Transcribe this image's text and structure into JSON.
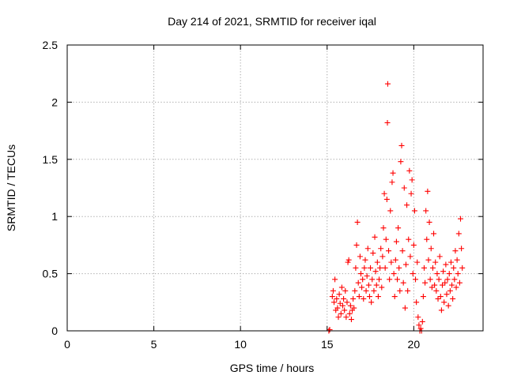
{
  "chart_data": {
    "type": "scatter",
    "title": "Day 214 of 2021, SRMTID for receiver iqal",
    "xlabel": "GPS time / hours",
    "ylabel": "SRMTID / TECUs",
    "xlim": [
      0,
      24
    ],
    "ylim": [
      0,
      2.5
    ],
    "xticks": [
      0,
      5,
      10,
      15,
      20
    ],
    "yticks": [
      0,
      0.5,
      1,
      1.5,
      2,
      2.5
    ],
    "xtick_labels": [
      "0",
      "5",
      "10",
      "15",
      "20"
    ],
    "ytick_labels": [
      "0",
      "0.5",
      "1",
      "1.5",
      "2",
      "2.5"
    ],
    "grid": true,
    "marker": "+",
    "color": "#ff0000",
    "series": [
      {
        "name": "SRMTID",
        "points": [
          [
            15.1,
            0.0
          ],
          [
            15.15,
            0.01
          ],
          [
            15.3,
            0.3
          ],
          [
            15.35,
            0.35
          ],
          [
            15.4,
            0.25
          ],
          [
            15.45,
            0.45
          ],
          [
            15.5,
            0.18
          ],
          [
            15.55,
            0.28
          ],
          [
            15.6,
            0.2
          ],
          [
            15.65,
            0.12
          ],
          [
            15.7,
            0.32
          ],
          [
            15.75,
            0.24
          ],
          [
            15.8,
            0.15
          ],
          [
            15.85,
            0.38
          ],
          [
            15.9,
            0.22
          ],
          [
            15.95,
            0.28
          ],
          [
            16.0,
            0.18
          ],
          [
            16.05,
            0.35
          ],
          [
            16.1,
            0.12
          ],
          [
            16.15,
            0.25
          ],
          [
            16.2,
            0.6
          ],
          [
            16.25,
            0.62
          ],
          [
            16.3,
            0.15
          ],
          [
            16.35,
            0.22
          ],
          [
            16.4,
            0.1
          ],
          [
            16.45,
            0.18
          ],
          [
            16.5,
            0.28
          ],
          [
            16.55,
            0.2
          ],
          [
            16.6,
            0.35
          ],
          [
            16.65,
            0.55
          ],
          [
            16.7,
            0.75
          ],
          [
            16.75,
            0.95
          ],
          [
            16.8,
            0.42
          ],
          [
            16.85,
            0.3
          ],
          [
            16.9,
            0.65
          ],
          [
            16.95,
            0.5
          ],
          [
            17.0,
            0.38
          ],
          [
            17.05,
            0.45
          ],
          [
            17.1,
            0.28
          ],
          [
            17.15,
            0.55
          ],
          [
            17.2,
            0.62
          ],
          [
            17.25,
            0.35
          ],
          [
            17.3,
            0.48
          ],
          [
            17.35,
            0.72
          ],
          [
            17.4,
            0.4
          ],
          [
            17.45,
            0.3
          ],
          [
            17.5,
            0.55
          ],
          [
            17.55,
            0.25
          ],
          [
            17.6,
            0.45
          ],
          [
            17.65,
            0.68
          ],
          [
            17.7,
            0.35
          ],
          [
            17.75,
            0.82
          ],
          [
            17.8,
            0.52
          ],
          [
            17.85,
            0.4
          ],
          [
            17.9,
            0.6
          ],
          [
            17.95,
            0.3
          ],
          [
            18.0,
            0.45
          ],
          [
            18.05,
            0.55
          ],
          [
            18.1,
            0.72
          ],
          [
            18.15,
            0.38
          ],
          [
            18.2,
            0.65
          ],
          [
            18.25,
            0.9
          ],
          [
            18.3,
            1.2
          ],
          [
            18.35,
            0.55
          ],
          [
            18.4,
            0.8
          ],
          [
            18.45,
            1.15
          ],
          [
            18.5,
            2.16
          ],
          [
            18.48,
            1.82
          ],
          [
            18.55,
            0.7
          ],
          [
            18.6,
            0.45
          ],
          [
            18.65,
            1.05
          ],
          [
            18.7,
            0.6
          ],
          [
            18.75,
            1.3
          ],
          [
            18.8,
            1.38
          ],
          [
            18.85,
            0.5
          ],
          [
            18.9,
            0.3
          ],
          [
            18.95,
            0.62
          ],
          [
            19.0,
            0.78
          ],
          [
            19.05,
            0.45
          ],
          [
            19.1,
            0.9
          ],
          [
            19.15,
            0.55
          ],
          [
            19.2,
            0.35
          ],
          [
            19.25,
            1.48
          ],
          [
            19.3,
            1.62
          ],
          [
            19.35,
            0.7
          ],
          [
            19.4,
            0.42
          ],
          [
            19.45,
            1.25
          ],
          [
            19.5,
            0.2
          ],
          [
            19.55,
            0.58
          ],
          [
            19.6,
            1.1
          ],
          [
            19.65,
            0.35
          ],
          [
            19.7,
            0.8
          ],
          [
            19.75,
            1.4
          ],
          [
            19.8,
            0.65
          ],
          [
            19.85,
            1.2
          ],
          [
            19.9,
            1.32
          ],
          [
            19.95,
            0.5
          ],
          [
            20.0,
            0.75
          ],
          [
            20.05,
            1.05
          ],
          [
            20.1,
            0.45
          ],
          [
            20.15,
            0.25
          ],
          [
            20.2,
            0.6
          ],
          [
            20.25,
            0.12
          ],
          [
            20.3,
            0.05
          ],
          [
            20.35,
            0.0
          ],
          [
            20.4,
            0.02
          ],
          [
            20.45,
            0.0
          ],
          [
            20.5,
            0.08
          ],
          [
            20.55,
            0.3
          ],
          [
            20.6,
            0.55
          ],
          [
            20.65,
            0.42
          ],
          [
            20.7,
            1.05
          ],
          [
            20.75,
            0.8
          ],
          [
            20.8,
            1.22
          ],
          [
            20.85,
            0.62
          ],
          [
            20.9,
            0.95
          ],
          [
            20.95,
            0.45
          ],
          [
            21.0,
            0.72
          ],
          [
            21.05,
            0.38
          ],
          [
            21.1,
            0.55
          ],
          [
            21.15,
            0.85
          ],
          [
            21.2,
            0.4
          ],
          [
            21.25,
            0.6
          ],
          [
            21.3,
            0.35
          ],
          [
            21.35,
            0.5
          ],
          [
            21.4,
            0.28
          ],
          [
            21.45,
            0.45
          ],
          [
            21.5,
            0.65
          ],
          [
            21.55,
            0.3
          ],
          [
            21.6,
            0.18
          ],
          [
            21.65,
            0.4
          ],
          [
            21.7,
            0.52
          ],
          [
            21.75,
            0.25
          ],
          [
            21.8,
            0.42
          ],
          [
            21.85,
            0.58
          ],
          [
            21.9,
            0.32
          ],
          [
            21.95,
            0.45
          ],
          [
            22.0,
            0.22
          ],
          [
            22.05,
            0.5
          ],
          [
            22.1,
            0.35
          ],
          [
            22.15,
            0.6
          ],
          [
            22.2,
            0.4
          ],
          [
            22.25,
            0.28
          ],
          [
            22.3,
            0.55
          ],
          [
            22.35,
            0.45
          ],
          [
            22.4,
            0.7
          ],
          [
            22.45,
            0.38
          ],
          [
            22.5,
            0.62
          ],
          [
            22.55,
            0.5
          ],
          [
            22.6,
            0.85
          ],
          [
            22.65,
            0.42
          ],
          [
            22.7,
            0.98
          ],
          [
            22.75,
            0.72
          ],
          [
            22.8,
            0.55
          ]
        ]
      }
    ]
  }
}
